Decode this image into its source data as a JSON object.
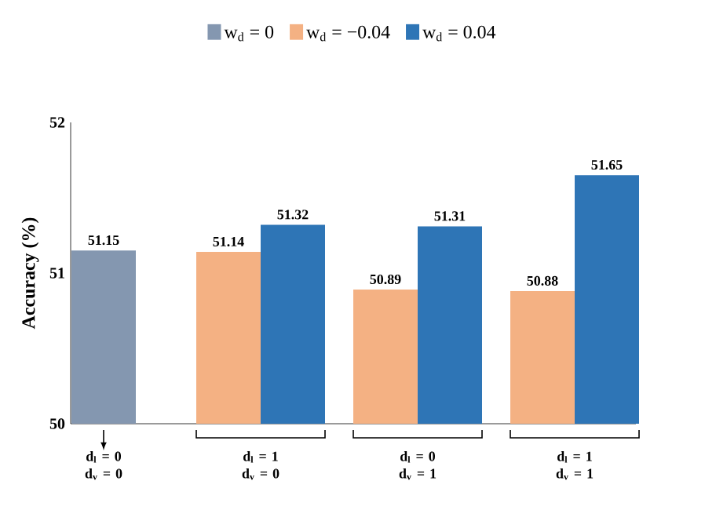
{
  "chart_data": {
    "type": "bar",
    "ylabel": "Accuracy (%)",
    "categories": [
      "d$_{l}$ = 0 d$_{v}$ = 0",
      "d$_{l}$ = 1 d$_{v}$ = 0",
      "d$_{l}$ = 0 d$_{v}$ = 1",
      "d$_{l}$ = 1 d$_{v}$ = 1"
    ],
    "series": [
      {
        "name": "w$_{d}$ = 0",
        "color": "#8497b0",
        "values": [
          51.15,
          null,
          null,
          null
        ]
      },
      {
        "name": "w$_{d}$ = −0.04",
        "color": "#f4b183",
        "values": [
          null,
          51.14,
          50.89,
          50.88
        ]
      },
      {
        "name": "w$_{d}$ = 0.04",
        "color": "#2e75b6",
        "values": [
          null,
          51.32,
          51.31,
          51.65
        ]
      }
    ],
    "ylim": [
      50,
      52
    ],
    "yticks": [
      50,
      51,
      52
    ],
    "data_labels": true,
    "legend": "top",
    "grid": false
  }
}
